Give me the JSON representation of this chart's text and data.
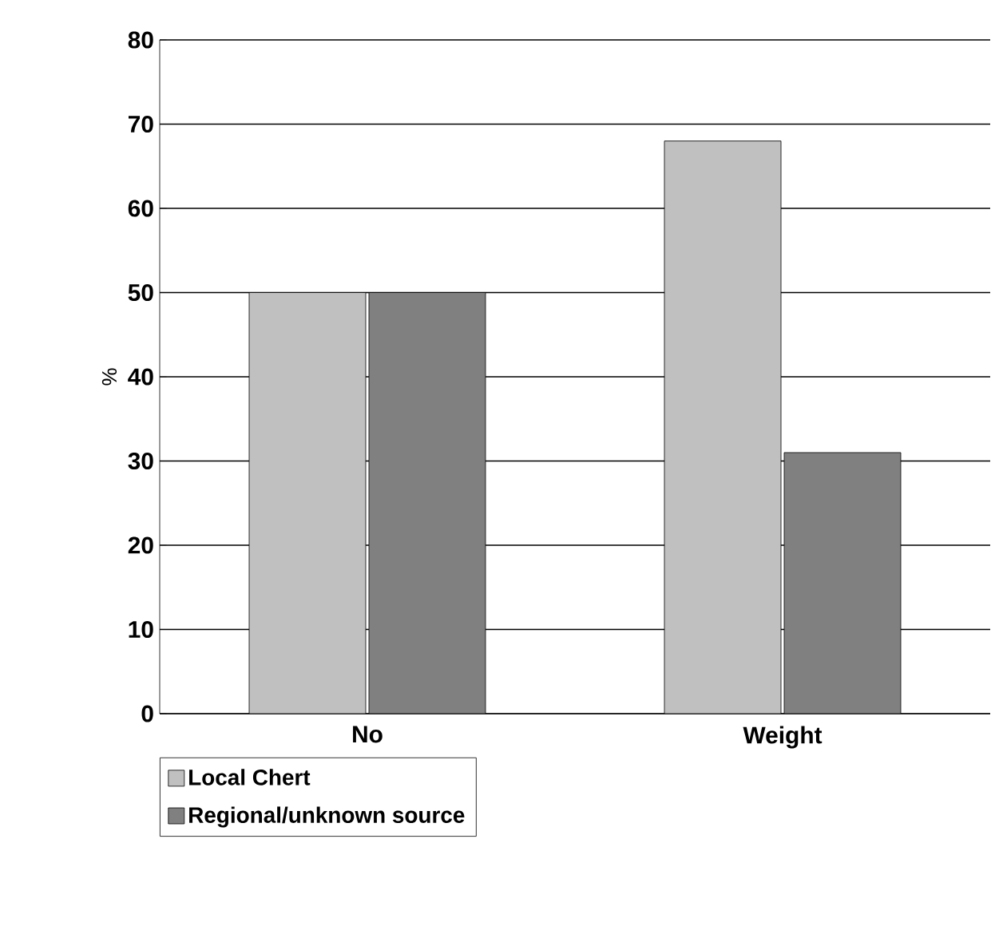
{
  "chart_data": {
    "type": "bar",
    "ylabel": "%",
    "categories": [
      "No",
      "Weight"
    ],
    "series": [
      {
        "name": "Local Chert",
        "color": "#c0c0c0",
        "values": [
          50,
          68
        ]
      },
      {
        "name": "Regional/unknown source",
        "color": "#808080",
        "values": [
          50,
          31
        ]
      }
    ],
    "ylim": [
      0,
      80
    ],
    "yticks": [
      0,
      10,
      20,
      30,
      40,
      50,
      60,
      70,
      80
    ],
    "grid": "y",
    "legend": "bottom left"
  }
}
